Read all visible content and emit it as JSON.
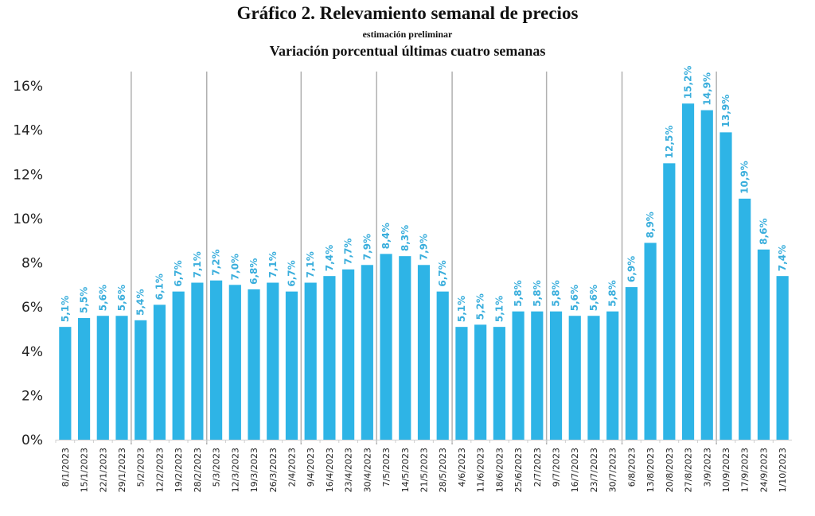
{
  "chart_data": {
    "type": "bar",
    "title": "Gráfico 2. Relevamiento semanal de precios",
    "subtitle": "estimación preliminar",
    "subtitle2": "Variación porcentual últimas cuatro semanas",
    "xlabel": "",
    "ylabel": "",
    "ylim": [
      0,
      16
    ],
    "yticks": [
      "0%",
      "2%",
      "4%",
      "6%",
      "8%",
      "10%",
      "12%",
      "14%",
      "16%"
    ],
    "grid": false,
    "legend": "none",
    "bar_color": "#2eb4e6",
    "label_color": "#3aaedc",
    "separator_color": "#b0b0b0",
    "month_separators_after": [
      "29/1/2023",
      "28/2/2023",
      "2/4/2023",
      "30/4/2023",
      "28/5/2023",
      "2/7/2023",
      "30/7/2023",
      "3/9/2023"
    ],
    "categories": [
      "8/1/2023",
      "15/1/2023",
      "22/1/2023",
      "29/1/2023",
      "5/2/2023",
      "12/2/2023",
      "19/2/2023",
      "28/2/2023",
      "5/3/2023",
      "12/3/2023",
      "19/3/2023",
      "26/3/2023",
      "2/4/2023",
      "9/4/2023",
      "16/4/2023",
      "23/4/2023",
      "30/4/2023",
      "7/5/2023",
      "14/5/2023",
      "21/5/2023",
      "28/5/2023",
      "4/6/2023",
      "11/6/2023",
      "18/6/2023",
      "25/6/2023",
      "2/7/2023",
      "9/7/2023",
      "16/7/2023",
      "23/7/2023",
      "30/7/2023",
      "6/8/2023",
      "13/8/2023",
      "20/8/2023",
      "27/8/2023",
      "3/9/2023",
      "10/9/2023",
      "17/9/2023",
      "24/9/2023",
      "1/10/2023"
    ],
    "values": [
      5.1,
      5.5,
      5.6,
      5.6,
      5.4,
      6.1,
      6.7,
      7.1,
      7.2,
      7.0,
      6.8,
      7.1,
      6.7,
      7.1,
      7.4,
      7.7,
      7.9,
      8.4,
      8.3,
      7.9,
      6.7,
      5.1,
      5.2,
      5.1,
      5.8,
      5.8,
      5.8,
      5.6,
      5.6,
      5.8,
      6.9,
      8.9,
      12.5,
      15.2,
      14.9,
      13.9,
      10.9,
      8.6,
      7.4
    ],
    "data_labels": [
      "5,1%",
      "5,5%",
      "5,6%",
      "5,6%",
      "5,4%",
      "6,1%",
      "6,7%",
      "7,1%",
      "7,2%",
      "7,0%",
      "6,8%",
      "7,1%",
      "6,7%",
      "7,1%",
      "7,4%",
      "7,7%",
      "7,9%",
      "8,4%",
      "8,3%",
      "7,9%",
      "6,7%",
      "5,1%",
      "5,2%",
      "5,1%",
      "5,8%",
      "5,8%",
      "5,8%",
      "5,6%",
      "5,6%",
      "5,8%",
      "6,9%",
      "8,9%",
      "12,5%",
      "15,2%",
      "14,9%",
      "13,9%",
      "10,9%",
      "8,6%",
      "7,4%"
    ]
  }
}
